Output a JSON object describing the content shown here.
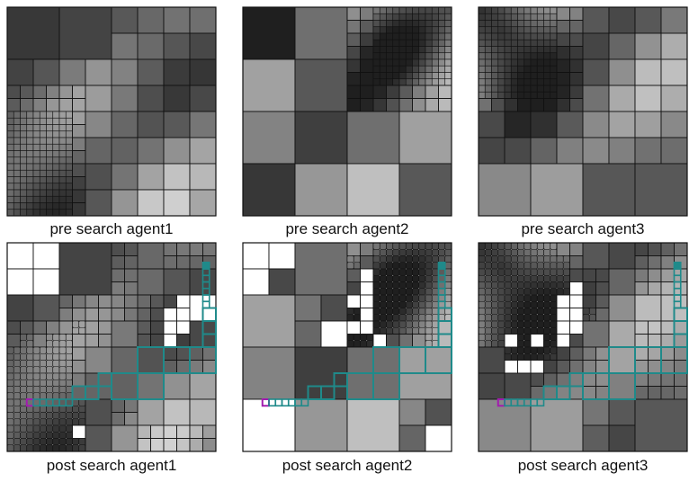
{
  "panels": [
    {
      "caption": "pre search agent1",
      "agent": 1,
      "stage": "pre"
    },
    {
      "caption": "pre search agent2",
      "agent": 2,
      "stage": "pre"
    },
    {
      "caption": "pre search agent3",
      "agent": 3,
      "stage": "pre"
    },
    {
      "caption": "post search agent1",
      "agent": 1,
      "stage": "post"
    },
    {
      "caption": "post search agent2",
      "agent": 2,
      "stage": "post"
    },
    {
      "caption": "post search agent3",
      "agent": 3,
      "stage": "post"
    }
  ],
  "colors": {
    "path": "#1f8a8a",
    "start": "#a21caf",
    "cell_stroke": "#111111"
  }
}
